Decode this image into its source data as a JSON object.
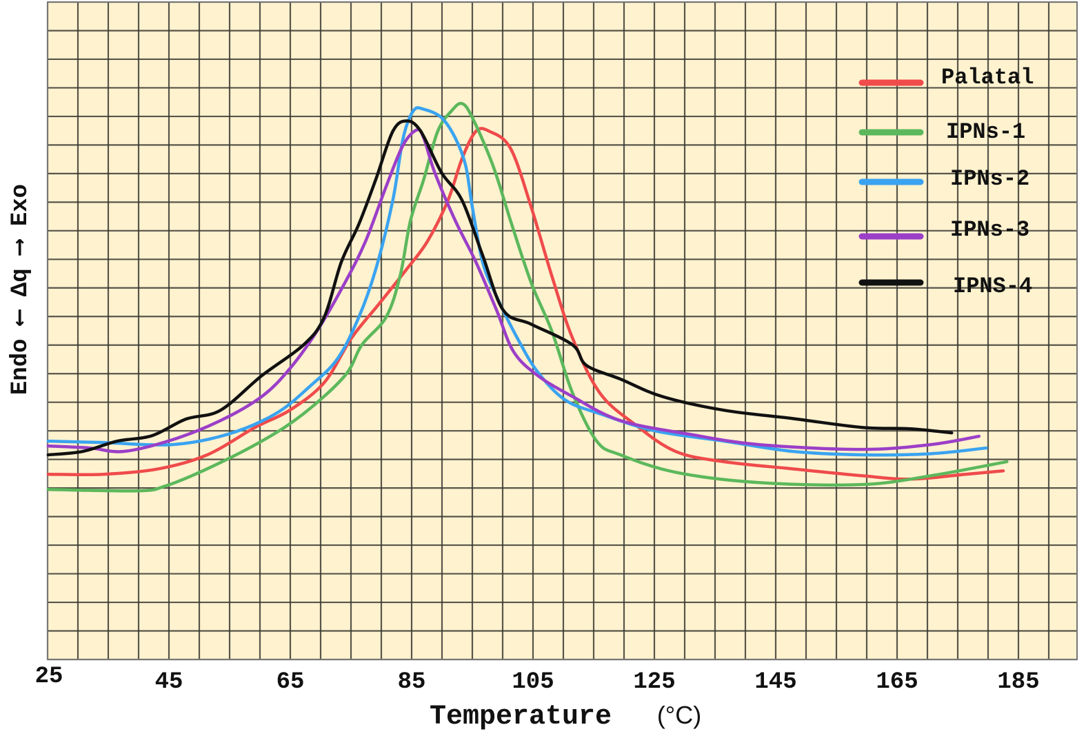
{
  "chart_data": {
    "type": "line",
    "title": "",
    "xlabel": "Temperature",
    "xlabel_unit": "(°C)",
    "ylabel": "Endo ⟵ Δq ⟶ Exo",
    "xlim": [
      25,
      195
    ],
    "ylim": [
      0,
      23
    ],
    "x_ticks": [
      25,
      45,
      65,
      85,
      105,
      125,
      145,
      165,
      185
    ],
    "x_grid_step": 5,
    "y_grid_step": 1,
    "grid": true,
    "background_color": "#fff2cf",
    "grid_color": "#3a3a32",
    "legend_position": "top-right",
    "series": [
      {
        "name": "Palatal",
        "color": "#ef4b4b",
        "x": [
          25.1,
          34.2,
          43.3,
          51.3,
          59.2,
          64.9,
          70.6,
          75.1,
          79.7,
          84.2,
          87.6,
          91.0,
          93.3,
          95.6,
          97.8,
          101.3,
          104.7,
          108.1,
          111.5,
          116.0,
          121.7,
          128.5,
          136.5,
          147.8,
          159.2,
          167.2,
          176.3,
          182.5
        ],
        "y": [
          6.48,
          6.48,
          6.67,
          7.16,
          8.12,
          8.72,
          9.69,
          11.25,
          12.46,
          13.66,
          14.63,
          16.07,
          17.52,
          18.48,
          18.48,
          17.88,
          15.83,
          13.42,
          11.25,
          9.33,
          8.24,
          7.28,
          6.92,
          6.67,
          6.43,
          6.31,
          6.48,
          6.6
        ]
      },
      {
        "name": "IPNs-1",
        "color": "#5cb85c",
        "x": [
          25.1,
          39.9,
          44.4,
          51.3,
          60.3,
          67.2,
          74.0,
          76.8,
          80.8,
          83.1,
          84.8,
          87.0,
          89.3,
          91.6,
          93.3,
          95.0,
          98.4,
          101.3,
          104.7,
          108.1,
          111.5,
          115.5,
          119.4,
          128.5,
          142.2,
          159.2,
          170.6,
          183.1
        ],
        "y": [
          5.95,
          5.9,
          6.07,
          6.67,
          7.64,
          8.6,
          9.93,
          11.01,
          11.98,
          13.42,
          15.35,
          16.8,
          18.48,
          19.2,
          19.45,
          18.96,
          17.28,
          15.35,
          13.18,
          11.49,
          9.33,
          7.64,
          7.16,
          6.55,
          6.19,
          6.12,
          6.43,
          6.92
        ]
      },
      {
        "name": "IPNs-2",
        "color": "#3aa3f0",
        "x": [
          25.1,
          34.2,
          45.6,
          54.7,
          62.6,
          68.3,
          72.8,
          76.3,
          79.1,
          81.9,
          83.6,
          85.3,
          87.0,
          89.9,
          92.2,
          93.9,
          95.0,
          96.7,
          99.0,
          102.4,
          105.8,
          110.3,
          116.0,
          125.1,
          136.5,
          147.8,
          159.2,
          170.6,
          179.7
        ],
        "y": [
          7.64,
          7.59,
          7.52,
          7.88,
          8.6,
          9.57,
          10.53,
          11.98,
          13.66,
          16.07,
          18.24,
          19.2,
          19.25,
          18.96,
          18.24,
          17.28,
          15.83,
          13.9,
          12.7,
          11.25,
          10.05,
          9.08,
          8.6,
          8.0,
          7.64,
          7.28,
          7.16,
          7.2,
          7.4
        ]
      },
      {
        "name": "IPNs-3",
        "color": "#9b3fc8",
        "x": [
          25.1,
          31.9,
          37.6,
          45.6,
          53.5,
          60.3,
          64.9,
          69.4,
          74.0,
          77.4,
          80.8,
          83.6,
          85.9,
          87.0,
          88.8,
          92.2,
          95.6,
          99.0,
          101.8,
          105.8,
          111.5,
          119.4,
          130.8,
          142.2,
          159.2,
          170.6,
          178.5
        ],
        "y": [
          7.47,
          7.4,
          7.28,
          7.69,
          8.36,
          9.2,
          10.17,
          11.49,
          13.18,
          14.63,
          16.55,
          18.0,
          18.53,
          18.24,
          17.04,
          15.35,
          13.9,
          12.22,
          10.77,
          9.93,
          9.2,
          8.36,
          7.88,
          7.52,
          7.35,
          7.52,
          7.81
        ]
      },
      {
        "name": "IPNS-4",
        "color": "#111111",
        "x": [
          25.1,
          30.8,
          36.5,
          42.2,
          47.8,
          53.5,
          60.3,
          67.2,
          70.6,
          73.4,
          76.3,
          79.1,
          81.9,
          84.2,
          86.5,
          89.9,
          93.3,
          96.7,
          100.1,
          104.7,
          111.5,
          113.8,
          119.4,
          126.3,
          136.5,
          147.8,
          159.2,
          167.2,
          174.0
        ],
        "y": [
          7.16,
          7.28,
          7.64,
          7.83,
          8.41,
          8.72,
          9.93,
          11.01,
          11.98,
          13.9,
          15.23,
          16.8,
          18.48,
          18.84,
          18.48,
          17.04,
          16.07,
          14.14,
          12.22,
          11.73,
          11.01,
          10.29,
          9.81,
          9.2,
          8.72,
          8.43,
          8.12,
          8.07,
          7.93
        ]
      }
    ]
  }
}
